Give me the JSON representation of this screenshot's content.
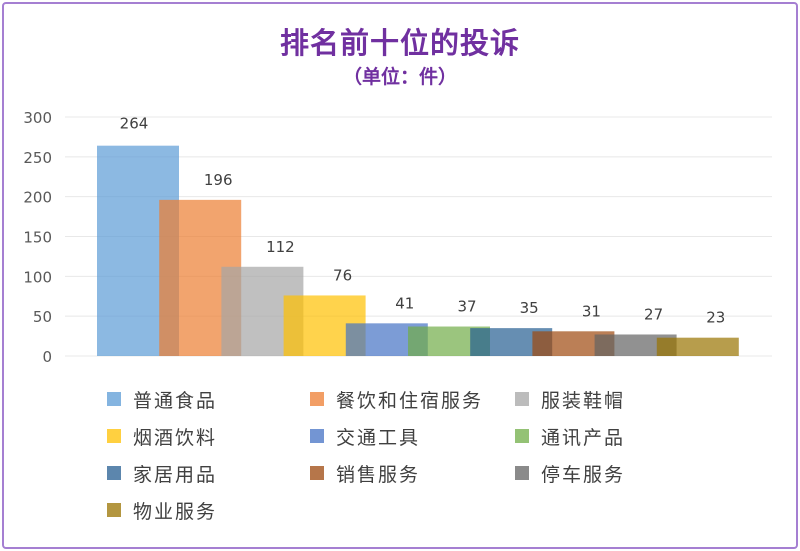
{
  "chart_data": {
    "type": "bar",
    "title": "排名前十位的投诉",
    "subtitle": "（单位：件）",
    "xlabel": "",
    "ylabel": "",
    "ylim": [
      0,
      300
    ],
    "yticks": [
      0,
      50,
      100,
      150,
      200,
      250,
      300
    ],
    "grid": true,
    "legend_position": "bottom",
    "categories": [
      "普通食品",
      "餐饮和住宿服务",
      "服装鞋帽",
      "烟酒饮料",
      "交通工具",
      "通讯产品",
      "家居用品",
      "销售服务",
      "停车服务",
      "物业服务"
    ],
    "values": [
      264,
      196,
      112,
      76,
      41,
      37,
      35,
      31,
      27,
      23
    ],
    "colors": [
      "#5b9bd5",
      "#ed7d31",
      "#a5a5a5",
      "#ffc000",
      "#4472c4",
      "#70ad47",
      "#255e91",
      "#9e480e",
      "#636363",
      "#997300"
    ]
  }
}
